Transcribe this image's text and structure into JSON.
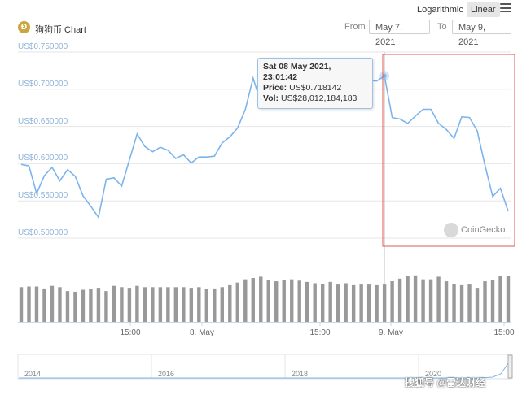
{
  "header": {
    "coin_icon": "dogecoin-icon",
    "title": "狗狗币 Chart",
    "scale_log_label": "Logarithmic",
    "scale_linear_label": "Linear",
    "scale_selected": "Linear",
    "menu_icon": "hamburger-menu-icon",
    "from_label": "From",
    "from_value": "May 7, 2021",
    "to_label": "To",
    "to_value": "May 9, 2021"
  },
  "tooltip": {
    "date": "Sat 08 May 2021, 23:01:42",
    "price_label": "Price:",
    "price_value": "US$0.718142",
    "vol_label": "Vol:",
    "vol_value": "US$28,012,184,183"
  },
  "watermark": {
    "text": "CoinGecko",
    "icon": "coingecko-icon"
  },
  "footer_watermark": "搜狐号 @雷达财经",
  "colors": {
    "price_line": "#7cb5ec",
    "volume_bars": "#999999",
    "highlight_box": "#e05a4f",
    "axis_label": "#8fb3d9"
  },
  "chart_data": {
    "type": "line",
    "title": "狗狗币 Chart",
    "xlabel": "",
    "ylabel": "",
    "y_ticks": [
      "US$0.750000",
      "US$0.700000",
      "US$0.650000",
      "US$0.600000",
      "US$0.550000",
      "US$0.500000"
    ],
    "ylim": [
      0.5,
      0.75
    ],
    "x_ticks": [
      "15:00",
      "8. May",
      "15:00",
      "9. May",
      "15:00"
    ],
    "grid": true,
    "series": [
      {
        "values": [
          0.599,
          0.597,
          0.56,
          0.584,
          0.595,
          0.577,
          0.592,
          0.583,
          0.557,
          0.543,
          0.528,
          0.579,
          0.581,
          0.57,
          0.605,
          0.64,
          0.623,
          0.616,
          0.622,
          0.618,
          0.607,
          0.612,
          0.601,
          0.609,
          0.609,
          0.61,
          0.628,
          0.636,
          0.648,
          0.673,
          0.715,
          0.682,
          0.676,
          0.692,
          0.704,
          0.713,
          0.722,
          0.721,
          0.718,
          0.713,
          0.716,
          0.72,
          0.714,
          0.716,
          0.712,
          0.712,
          0.711,
          0.718,
          0.662,
          0.66,
          0.654,
          0.664,
          0.673,
          0.673,
          0.654,
          0.646,
          0.634,
          0.663,
          0.662,
          0.644,
          0.598,
          0.556,
          0.567,
          0.536
        ]
      },
      {
        "name": "Volume",
        "values": [
          53,
          54,
          54,
          51,
          55,
          53,
          47,
          46,
          49,
          50,
          52,
          47,
          55,
          53,
          52,
          55,
          53,
          53,
          53,
          53,
          53,
          53,
          52,
          53,
          50,
          51,
          53,
          56,
          60,
          65,
          67,
          69,
          64,
          62,
          64,
          65,
          63,
          61,
          59,
          58,
          61,
          57,
          59,
          56,
          57,
          57,
          56,
          57,
          62,
          66,
          70,
          71,
          65,
          65,
          69,
          62,
          58,
          56,
          57,
          52,
          62,
          64,
          70,
          70
        ]
      }
    ],
    "navigator_labels": [
      "2014",
      "2016",
      "2018",
      "2020"
    ]
  }
}
